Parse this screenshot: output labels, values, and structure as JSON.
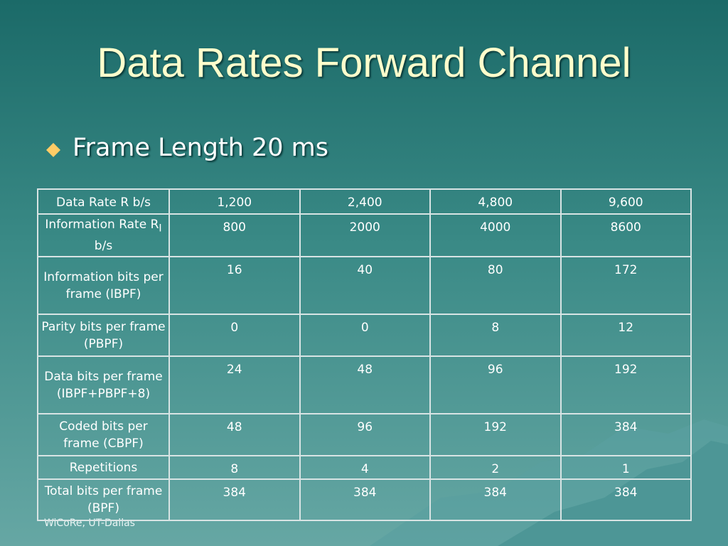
{
  "header": {
    "title": "Data Rates Forward Channel"
  },
  "bullet": "Frame Length 20 ms",
  "table": {
    "rows": [
      [
        "Data Rate R b/s",
        "1,200",
        "2,400",
        "4,800",
        "9,600"
      ],
      [
        [
          "Information Rate R",
          "I",
          " b/s"
        ],
        "800",
        "2000",
        "4000",
        "8600"
      ],
      [
        "Information bits per frame (IBPF)",
        "16",
        "40",
        "80",
        "172"
      ],
      [
        "Parity bits per frame (PBPF)",
        "0",
        "0",
        "8",
        "12"
      ],
      [
        "Data bits per frame (IBPF+PBPF+8)",
        "24",
        "48",
        "96",
        "192"
      ],
      [
        "Coded bits per frame (CBPF)",
        "48",
        "96",
        "192",
        "384"
      ],
      [
        "Repetitions",
        "8",
        "4",
        "2",
        "1"
      ],
      [
        "Total bits per frame (BPF)",
        "384",
        "384",
        "384",
        "384"
      ]
    ]
  },
  "footer": "WiCoRe, UT-Dallas"
}
